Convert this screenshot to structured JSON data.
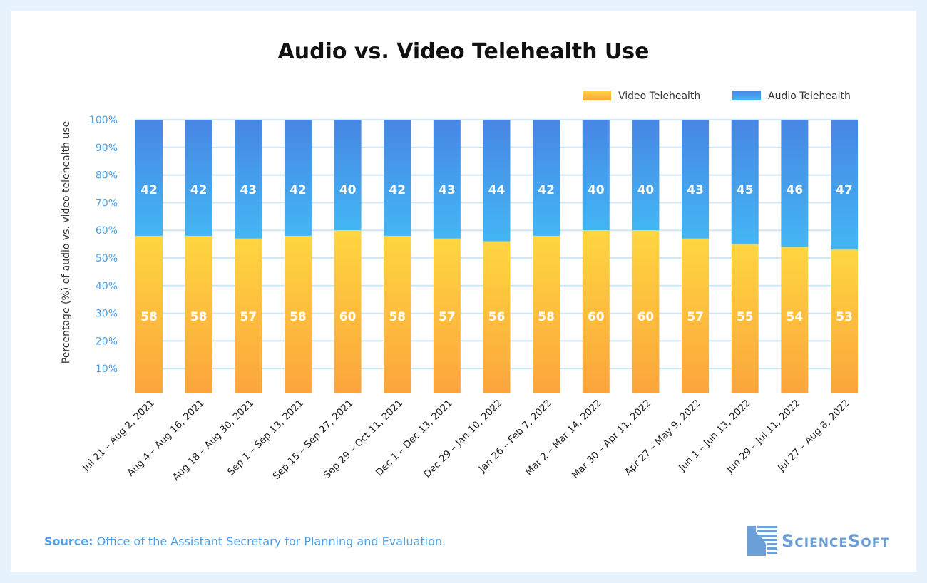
{
  "chart_data": {
    "type": "bar",
    "stacked": true,
    "title": "Audio vs. Video Telehealth Use",
    "ylabel": "Percentage (%) of audio vs. video telehealth use",
    "xlabel": "",
    "ylim": [
      0,
      100
    ],
    "yticks": [
      "10%",
      "20%",
      "30%",
      "40%",
      "50%",
      "60%",
      "70%",
      "80%",
      "90%",
      "100%"
    ],
    "grid": true,
    "legend": "top-right",
    "categories": [
      "Jul 21 – Aug 2, 2021",
      "Aug 4 – Aug 16, 2021",
      "Aug 18 – Aug 30, 2021",
      "Sep 1 – Sep 13, 2021",
      "Sep 15 – Sep 27, 2021",
      "Sep 29 – Oct 11, 2021",
      "Dec 1 – Dec 13, 2021",
      "Dec 29 – Jan 10, 2022",
      "Jan 26 – Feb 7, 2022",
      "Mar 2 – Mar 14, 2022",
      "Mar 30 – Apr 11, 2022",
      "Apr 27 – May 9, 2022",
      "Jun 1 – Jun 13, 2022",
      "Jun 29 – Jul 11, 2022",
      "Jul 27 – Aug 8, 2022"
    ],
    "series": [
      {
        "name": "Video Telehealth",
        "color": "#fdb53a",
        "values": [
          58,
          58,
          57,
          58,
          60,
          58,
          57,
          56,
          58,
          60,
          60,
          57,
          55,
          54,
          53
        ]
      },
      {
        "name": "Audio Telehealth",
        "color": "#4a90e2",
        "values": [
          42,
          42,
          43,
          42,
          40,
          42,
          43,
          44,
          42,
          40,
          40,
          43,
          45,
          46,
          47
        ]
      }
    ]
  },
  "source": {
    "label": "Source:",
    "text": " Office of the Assistant Secretary for Planning and Evaluation."
  },
  "logo": {
    "text": "ScienceSoft"
  }
}
